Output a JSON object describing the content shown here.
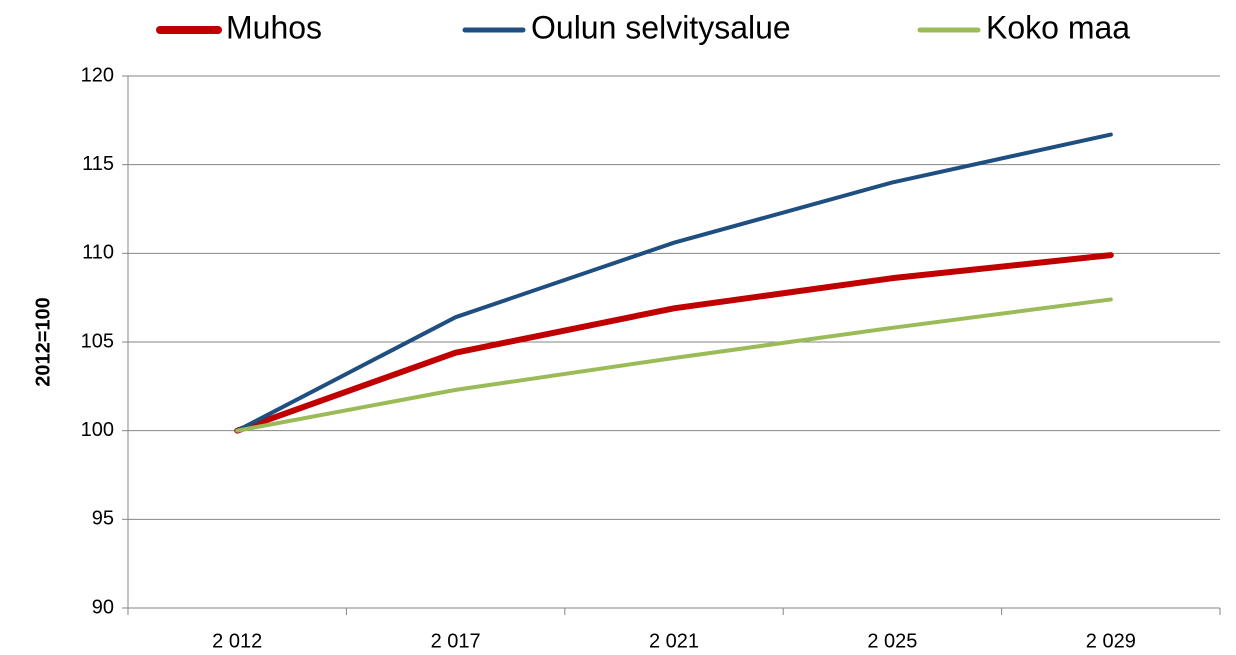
{
  "chart_data": {
    "type": "line",
    "y_label": "2012=100",
    "categories": [
      "2 012",
      "2 017",
      "2 021",
      "2 025",
      "2 029"
    ],
    "series": [
      {
        "name": "Muhos",
        "color": "#c00000",
        "values": [
          100,
          104.4,
          106.9,
          108.6,
          109.9
        ]
      },
      {
        "name": "Oulun selvitysalue",
        "color": "#1f4e80",
        "values": [
          100,
          106.4,
          110.6,
          114.0,
          116.7
        ]
      },
      {
        "name": "Koko maa",
        "color": "#9bbb59",
        "values": [
          100,
          102.3,
          104.1,
          105.8,
          107.4
        ]
      }
    ],
    "ylim": [
      90,
      120
    ],
    "yticks": [
      90,
      95,
      100,
      105,
      110,
      115,
      120
    ],
    "grid": true,
    "legend": "top"
  }
}
